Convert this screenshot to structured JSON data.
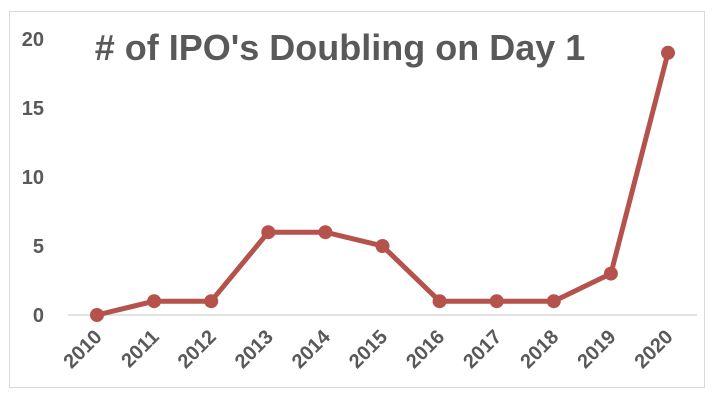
{
  "chart_data": {
    "type": "line",
    "title": "# of IPO's Doubling on Day 1",
    "xlabel": "",
    "ylabel": "",
    "categories": [
      "2010",
      "2011",
      "2012",
      "2013",
      "2014",
      "2015",
      "2016",
      "2017",
      "2018",
      "2019",
      "2020"
    ],
    "series": [
      {
        "values": [
          0,
          1,
          1,
          6,
          6,
          5,
          1,
          1,
          1,
          3,
          19
        ]
      }
    ],
    "ylim": [
      0,
      20
    ],
    "yticks": [
      "0",
      "5",
      "10",
      "15",
      "20"
    ],
    "grid": false,
    "legend": "none",
    "colors": {
      "line": "#b5524c",
      "text": "#595959",
      "axis": "#d9d9d9"
    }
  }
}
